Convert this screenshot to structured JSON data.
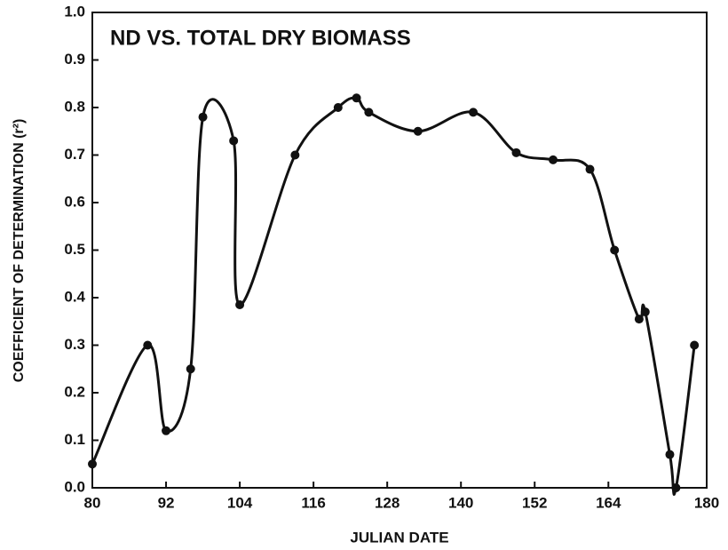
{
  "chart_data": {
    "type": "line",
    "title": "ND VS. TOTAL DRY BIOMASS",
    "x_label": "JULIAN DATE",
    "y_label": "COEFFICIENT OF DETERMINATION (r²)",
    "x": [
      80,
      89,
      92,
      96,
      98,
      103,
      104,
      113,
      120,
      123,
      125,
      133,
      142,
      149,
      155,
      161,
      165,
      169,
      170,
      174,
      175,
      178
    ],
    "values": [
      0.05,
      0.3,
      0.12,
      0.25,
      0.78,
      0.73,
      0.385,
      0.7,
      0.8,
      0.82,
      0.79,
      0.75,
      0.79,
      0.705,
      0.69,
      0.67,
      0.5,
      0.355,
      0.37,
      0.07,
      0.0,
      0.3
    ],
    "color": "#111111",
    "xlim": [
      80,
      180
    ],
    "xticks": [
      80,
      92,
      104,
      116,
      128,
      140,
      152,
      164,
      180
    ],
    "ylim": [
      0,
      1
    ],
    "yticks": [
      {
        "value": 0,
        "label": "0.0"
      },
      0.1,
      0.2,
      0.3,
      0.4,
      0.5,
      0.6,
      0.7,
      0.8,
      0.9,
      {
        "value": 1,
        "label": "1.0"
      }
    ]
  }
}
